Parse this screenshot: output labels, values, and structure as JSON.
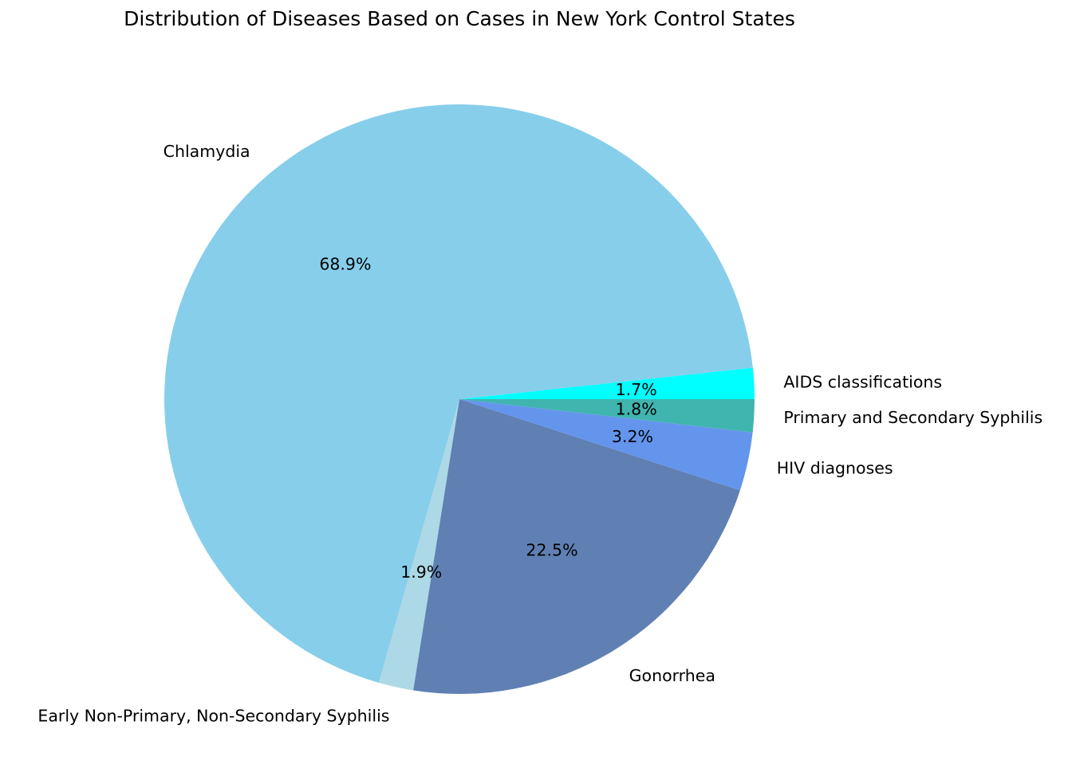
{
  "chart_data": {
    "type": "pie",
    "title": "Distribution of Diseases Based on Cases in New York Control States",
    "start_angle_deg": 0,
    "direction": "counterclockwise",
    "slices": [
      {
        "label": "AIDS classifications",
        "value": 1.7,
        "pct_label": "1.7%",
        "color": "#00FFFF"
      },
      {
        "label": "Chlamydia",
        "value": 68.9,
        "pct_label": "68.9%",
        "color": "#87CEEB"
      },
      {
        "label": "Early Non-Primary, Non-Secondary Syphilis",
        "value": 1.9,
        "pct_label": "1.9%",
        "color": "#ADD8E6"
      },
      {
        "label": "Gonorrhea",
        "value": 22.5,
        "pct_label": "22.5%",
        "color": "#6080B4"
      },
      {
        "label": "HIV diagnoses",
        "value": 3.2,
        "pct_label": "3.2%",
        "color": "#6495ED"
      },
      {
        "label": "Primary and Secondary Syphilis",
        "value": 1.8,
        "pct_label": "1.8%",
        "color": "#40B4AE"
      }
    ]
  }
}
